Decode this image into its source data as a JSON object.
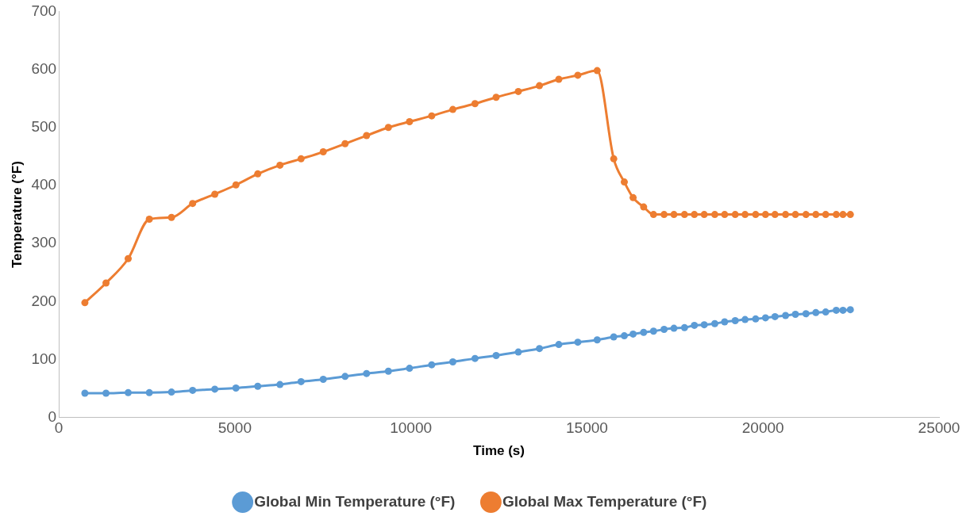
{
  "chart_data": {
    "type": "line",
    "xlabel": "Time (s)",
    "ylabel": "Temperature (°F)",
    "x": [
      740,
      1340,
      1970,
      2570,
      3200,
      3800,
      4430,
      5030,
      5650,
      6280,
      6880,
      7510,
      8130,
      8740,
      9360,
      9960,
      10590,
      11190,
      11820,
      12420,
      13050,
      13650,
      14200,
      14740,
      15290,
      15760,
      16060,
      16310,
      16610,
      16890,
      17190,
      17470,
      17770,
      18050,
      18330,
      18630,
      18910,
      19210,
      19490,
      19790,
      20070,
      20340,
      20640,
      20920,
      21220,
      21500,
      21780,
      22080,
      22270,
      22480
    ],
    "series": [
      {
        "name": "Global Min Temperature (°F)",
        "color": "#5b9bd5",
        "values": [
          42,
          42,
          43,
          43,
          44,
          47,
          49,
          51,
          54,
          57,
          62,
          66,
          71,
          76,
          80,
          85,
          91,
          96,
          102,
          107,
          113,
          119,
          126,
          130,
          134,
          139,
          141,
          144,
          147,
          149,
          152,
          154,
          155,
          159,
          160,
          162,
          165,
          167,
          169,
          170,
          172,
          174,
          176,
          178,
          179,
          181,
          182,
          185,
          185,
          186
        ]
      },
      {
        "name": "Global Max Temperature (°F)",
        "color": "#ed7d31",
        "values": [
          198,
          232,
          274,
          342,
          345,
          369,
          385,
          401,
          420,
          435,
          446,
          458,
          472,
          486,
          500,
          510,
          520,
          531,
          541,
          552,
          562,
          572,
          583,
          590,
          598,
          446,
          406,
          379,
          363,
          350,
          350,
          350,
          350,
          350,
          350,
          350,
          350,
          350,
          350,
          350,
          350,
          350,
          350,
          350,
          350,
          350,
          350,
          350,
          350,
          350
        ]
      }
    ],
    "xlim": [
      0,
      25000
    ],
    "xticks": [
      0,
      5000,
      10000,
      15000,
      20000,
      25000
    ],
    "ylim": [
      0,
      700
    ],
    "yticks": [
      0,
      100,
      200,
      300,
      400,
      500,
      600,
      700
    ],
    "grid": false,
    "legend": "bottom",
    "marker": "circle",
    "line_style": "solid"
  }
}
